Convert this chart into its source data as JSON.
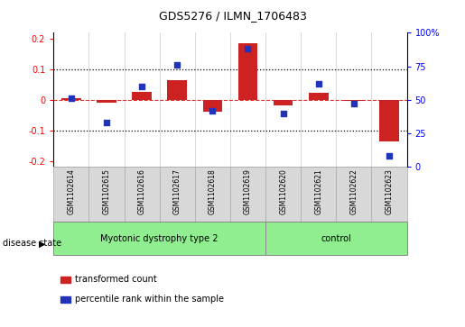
{
  "title": "GDS5276 / ILMN_1706483",
  "samples": [
    "GSM1102614",
    "GSM1102615",
    "GSM1102616",
    "GSM1102617",
    "GSM1102618",
    "GSM1102619",
    "GSM1102620",
    "GSM1102621",
    "GSM1102622",
    "GSM1102623"
  ],
  "transformed_count": [
    0.005,
    -0.008,
    0.025,
    0.065,
    -0.038,
    0.185,
    -0.018,
    0.022,
    -0.004,
    -0.135
  ],
  "percentile_rank": [
    51,
    33,
    60,
    76,
    42,
    88,
    40,
    62,
    47,
    8
  ],
  "group1_samples": 6,
  "group2_samples": 4,
  "groups": [
    {
      "label": "Myotonic dystrophy type 2",
      "color": "#90EE90"
    },
    {
      "label": "control",
      "color": "#90EE90"
    }
  ],
  "ylim_left": [
    -0.22,
    0.22
  ],
  "ylim_right": [
    0,
    100
  ],
  "yticks_left": [
    -0.2,
    -0.1,
    0.0,
    0.1,
    0.2
  ],
  "yticks_right": [
    0,
    25,
    50,
    75,
    100
  ],
  "bar_color": "#CC2222",
  "dot_color": "#2233BB",
  "hline_color": "#DD3333",
  "dotted_color": "black",
  "legend_bar_label": "transformed count",
  "legend_dot_label": "percentile rank within the sample",
  "sample_box_color": "#D8D8D8",
  "disease_label": "disease state"
}
